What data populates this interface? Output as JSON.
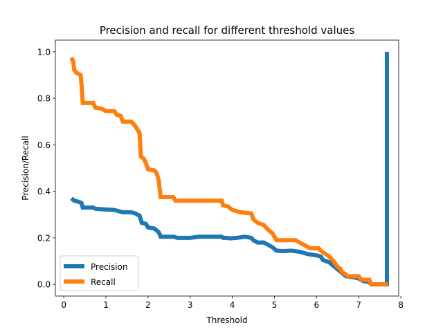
{
  "chart_data": {
    "type": "line",
    "title": "Precision and recall for different threshold values",
    "xlabel": "Threshold",
    "ylabel": "Precision/Recall",
    "xlim": [
      -0.2,
      7.95
    ],
    "ylim": [
      -0.05,
      1.05
    ],
    "xticks": [
      0,
      1,
      2,
      3,
      4,
      5,
      6,
      7,
      8
    ],
    "yticks": [
      0.0,
      0.2,
      0.4,
      0.6,
      0.8,
      1.0
    ],
    "ytick_labels": [
      "0.0",
      "0.2",
      "0.4",
      "0.6",
      "0.8",
      "1.0"
    ],
    "grid": false,
    "legend_position": "lower-left",
    "series": [
      {
        "name": "Precision",
        "color": "#1f77b4",
        "points": [
          [
            0.18,
            0.37
          ],
          [
            0.25,
            0.36
          ],
          [
            0.35,
            0.355
          ],
          [
            0.42,
            0.35
          ],
          [
            0.45,
            0.33
          ],
          [
            0.6,
            0.33
          ],
          [
            0.7,
            0.33
          ],
          [
            0.75,
            0.325
          ],
          [
            0.9,
            0.323
          ],
          [
            1.0,
            0.322
          ],
          [
            1.2,
            0.32
          ],
          [
            1.4,
            0.31
          ],
          [
            1.6,
            0.31
          ],
          [
            1.7,
            0.305
          ],
          [
            1.8,
            0.295
          ],
          [
            1.85,
            0.265
          ],
          [
            1.95,
            0.26
          ],
          [
            2.0,
            0.245
          ],
          [
            2.15,
            0.24
          ],
          [
            2.25,
            0.225
          ],
          [
            2.3,
            0.205
          ],
          [
            2.6,
            0.205
          ],
          [
            2.7,
            0.2
          ],
          [
            3.0,
            0.2
          ],
          [
            3.2,
            0.205
          ],
          [
            3.5,
            0.205
          ],
          [
            3.75,
            0.205
          ],
          [
            3.78,
            0.2
          ],
          [
            3.85,
            0.2
          ],
          [
            3.95,
            0.198
          ],
          [
            4.1,
            0.2
          ],
          [
            4.3,
            0.205
          ],
          [
            4.45,
            0.2
          ],
          [
            4.5,
            0.19
          ],
          [
            4.6,
            0.18
          ],
          [
            4.75,
            0.18
          ],
          [
            4.85,
            0.17
          ],
          [
            4.95,
            0.16
          ],
          [
            5.05,
            0.145
          ],
          [
            5.2,
            0.143
          ],
          [
            5.4,
            0.145
          ],
          [
            5.6,
            0.14
          ],
          [
            5.8,
            0.13
          ],
          [
            6.0,
            0.125
          ],
          [
            6.1,
            0.12
          ],
          [
            6.15,
            0.105
          ],
          [
            6.3,
            0.095
          ],
          [
            6.4,
            0.08
          ],
          [
            6.5,
            0.065
          ],
          [
            6.6,
            0.05
          ],
          [
            6.7,
            0.035
          ],
          [
            6.9,
            0.03
          ],
          [
            7.0,
            0.025
          ],
          [
            7.1,
            0.015
          ],
          [
            7.25,
            0.01
          ],
          [
            7.3,
            0.0
          ],
          [
            7.67,
            0.0
          ],
          [
            7.67,
            1.0
          ]
        ]
      },
      {
        "name": "Recall",
        "color": "#ff7f0e",
        "points": [
          [
            0.18,
            0.975
          ],
          [
            0.22,
            0.96
          ],
          [
            0.25,
            0.92
          ],
          [
            0.3,
            0.91
          ],
          [
            0.4,
            0.9
          ],
          [
            0.42,
            0.86
          ],
          [
            0.45,
            0.78
          ],
          [
            0.7,
            0.78
          ],
          [
            0.75,
            0.76
          ],
          [
            0.9,
            0.755
          ],
          [
            1.0,
            0.745
          ],
          [
            1.2,
            0.745
          ],
          [
            1.25,
            0.73
          ],
          [
            1.35,
            0.725
          ],
          [
            1.4,
            0.7
          ],
          [
            1.6,
            0.7
          ],
          [
            1.7,
            0.68
          ],
          [
            1.8,
            0.65
          ],
          [
            1.83,
            0.55
          ],
          [
            1.9,
            0.54
          ],
          [
            1.95,
            0.52
          ],
          [
            2.0,
            0.495
          ],
          [
            2.15,
            0.49
          ],
          [
            2.2,
            0.48
          ],
          [
            2.25,
            0.45
          ],
          [
            2.3,
            0.375
          ],
          [
            2.6,
            0.375
          ],
          [
            2.65,
            0.36
          ],
          [
            3.75,
            0.36
          ],
          [
            3.78,
            0.34
          ],
          [
            3.9,
            0.335
          ],
          [
            4.0,
            0.32
          ],
          [
            4.2,
            0.31
          ],
          [
            4.45,
            0.305
          ],
          [
            4.5,
            0.28
          ],
          [
            4.6,
            0.265
          ],
          [
            4.75,
            0.255
          ],
          [
            4.85,
            0.235
          ],
          [
            4.95,
            0.22
          ],
          [
            5.05,
            0.19
          ],
          [
            5.5,
            0.19
          ],
          [
            5.6,
            0.18
          ],
          [
            5.75,
            0.165
          ],
          [
            5.85,
            0.155
          ],
          [
            6.05,
            0.155
          ],
          [
            6.1,
            0.145
          ],
          [
            6.3,
            0.12
          ],
          [
            6.4,
            0.1
          ],
          [
            6.5,
            0.075
          ],
          [
            6.55,
            0.07
          ],
          [
            6.6,
            0.055
          ],
          [
            6.75,
            0.035
          ],
          [
            7.0,
            0.035
          ],
          [
            7.05,
            0.02
          ],
          [
            7.25,
            0.02
          ],
          [
            7.3,
            0.0
          ],
          [
            7.7,
            0.0
          ]
        ]
      }
    ]
  }
}
